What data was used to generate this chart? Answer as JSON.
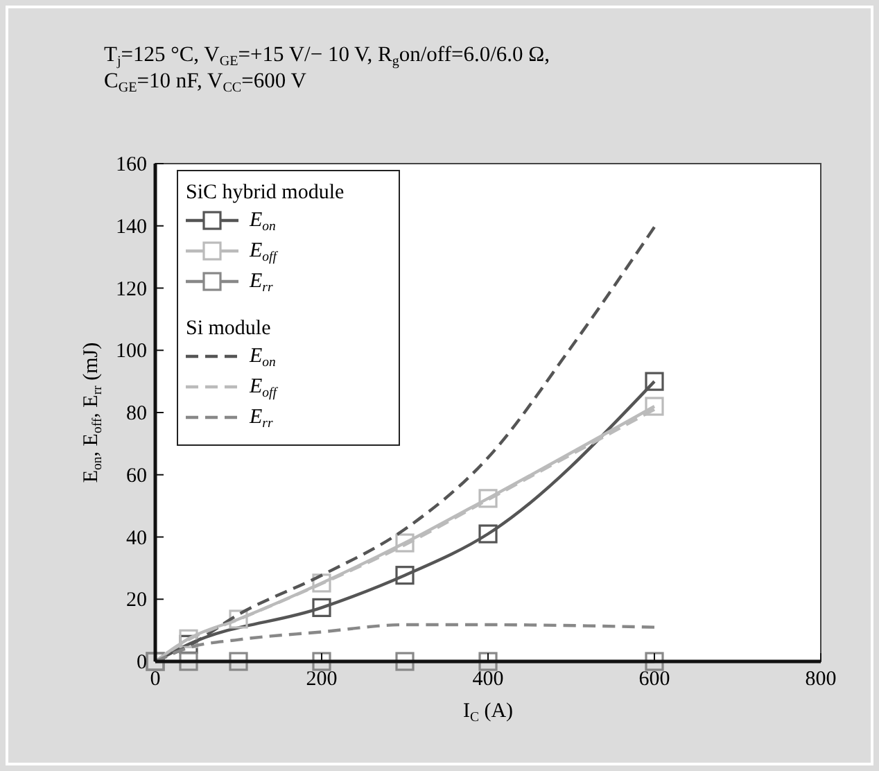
{
  "chart_data": {
    "type": "line",
    "title": "T$_{j}$=125 °C, V$_{GE}$=+15 V/− 10 V, R$_{g}$on/off=6.0/6.0 Ω,\nC$_{GE}$=10 nF, V$_{CC}$=600 V",
    "xlabel": "I$_{C}$ (A)",
    "ylabel": "E$_{on}$, E$_{off}$, E$_{rr}$ (mJ)",
    "annotations": [
      "SiC hybrid module",
      "Si module"
    ],
    "xlim": [
      0,
      800
    ],
    "xticks": [
      0,
      200,
      400,
      600,
      800
    ],
    "ylim": [
      0,
      160
    ],
    "yticks": [
      0,
      20,
      40,
      60,
      80,
      100,
      120,
      140,
      160
    ],
    "grid": false,
    "legend": "top left",
    "series": [
      {
        "name": "E$_{on}$",
        "color": "#555555",
        "marker": "square",
        "line_style": "solid",
        "x": [
          0,
          40,
          200,
          300,
          400,
          600
        ],
        "values": [
          0,
          5.5,
          17.3,
          27.7,
          41,
          90
        ]
      },
      {
        "name": "E$_{off}$",
        "color": "#bbbbbb",
        "marker": "square",
        "line_style": "solid",
        "x": [
          0,
          40,
          100,
          200,
          300,
          400,
          600
        ],
        "values": [
          0,
          7.3,
          13.6,
          25.2,
          38.1,
          52.4,
          82
        ]
      },
      {
        "name": "E$_{rr}$",
        "color": "#888888",
        "marker": "square",
        "line_style": "solid",
        "x": [
          0,
          40,
          100,
          200,
          300,
          400,
          600
        ],
        "values": [
          0,
          0,
          0,
          0,
          0,
          0,
          0
        ]
      },
      {
        "name": "E$_{on}$",
        "color": "#555555",
        "marker": "none",
        "line_style": "dashed",
        "x": [
          0,
          40,
          100,
          200,
          300,
          400,
          500,
          600
        ],
        "values": [
          0,
          5,
          15.1,
          27.7,
          42.5,
          65.5,
          101,
          139.6
        ]
      },
      {
        "name": "E$_{off}$",
        "color": "#bbbbbb",
        "marker": "none",
        "line_style": "dashed",
        "x": [
          0,
          40,
          100,
          200,
          300,
          400,
          600
        ],
        "values": [
          0,
          7,
          13.5,
          25,
          37.5,
          52,
          81
        ]
      },
      {
        "name": "E$_{rr}$",
        "color": "#888888",
        "marker": "none",
        "line_style": "dashed",
        "x": [
          0,
          40,
          100,
          200,
          300,
          400,
          600
        ],
        "values": [
          0,
          4.4,
          7,
          9.5,
          11.8,
          11.8,
          11
        ]
      }
    ]
  }
}
